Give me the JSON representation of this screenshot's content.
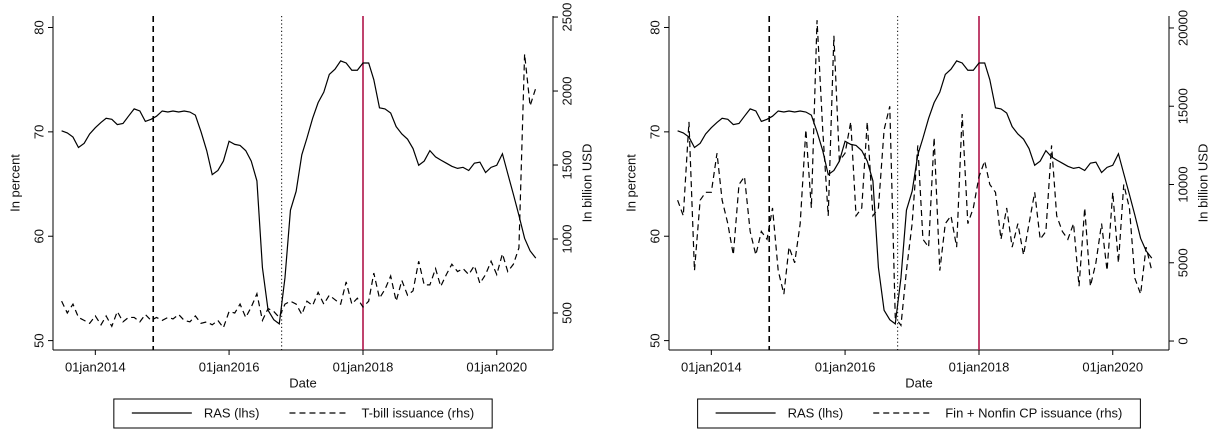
{
  "chart_data": [
    {
      "type": "line",
      "xlabel": "Date",
      "ylabel": "In percent",
      "y2label": "In billion USD",
      "x": [
        "2013-07",
        "2013-08",
        "2013-09",
        "2013-10",
        "2013-11",
        "2013-12",
        "2014-01",
        "2014-02",
        "2014-03",
        "2014-04",
        "2014-05",
        "2014-06",
        "2014-07",
        "2014-08",
        "2014-09",
        "2014-10",
        "2014-11",
        "2014-12",
        "2015-01",
        "2015-02",
        "2015-03",
        "2015-04",
        "2015-05",
        "2015-06",
        "2015-07",
        "2015-08",
        "2015-09",
        "2015-10",
        "2015-11",
        "2015-12",
        "2016-01",
        "2016-02",
        "2016-03",
        "2016-04",
        "2016-05",
        "2016-06",
        "2016-07",
        "2016-08",
        "2016-09",
        "2016-10",
        "2016-11",
        "2016-12",
        "2017-01",
        "2017-02",
        "2017-03",
        "2017-04",
        "2017-05",
        "2017-06",
        "2017-07",
        "2017-08",
        "2017-09",
        "2017-10",
        "2017-11",
        "2017-12",
        "2018-01",
        "2018-02",
        "2018-03",
        "2018-04",
        "2018-05",
        "2018-06",
        "2018-07",
        "2018-08",
        "2018-09",
        "2018-10",
        "2018-11",
        "2018-12",
        "2019-01",
        "2019-02",
        "2019-03",
        "2019-04",
        "2019-05",
        "2019-06",
        "2019-07",
        "2019-08",
        "2019-09",
        "2019-10",
        "2019-11",
        "2019-12",
        "2020-01",
        "2020-02",
        "2020-03",
        "2020-04",
        "2020-05",
        "2020-06",
        "2020-07",
        "2020-08"
      ],
      "xlim": [
        "2013-05-15",
        "2020-11-03"
      ],
      "xticks": [
        {
          "value": "2014-01",
          "label": "01jan2014"
        },
        {
          "value": "2016-01",
          "label": "01jan2016"
        },
        {
          "value": "2018-01",
          "label": "01jan2018"
        },
        {
          "value": "2020-01",
          "label": "01jan2020"
        }
      ],
      "ylim": [
        49.1,
        81.1
      ],
      "yticks": [
        50,
        60,
        70,
        80
      ],
      "y2lim": [
        250,
        2507
      ],
      "y2ticks": [
        500,
        1000,
        1500,
        2000,
        2500
      ],
      "vlines": [
        {
          "x": "2014-11-13",
          "style": "dashed",
          "color": "#000000"
        },
        {
          "x": "2016-10-14",
          "style": "dotted",
          "color": "#000000"
        },
        {
          "x": "2018-01",
          "style": "solid",
          "color": "#b0154a"
        }
      ],
      "series": [
        {
          "name": "RAS (lhs)",
          "color": "#000000",
          "style": "solid",
          "values": [
            70.1,
            69.9,
            69.5,
            68.5,
            68.9,
            69.8,
            70.4,
            70.9,
            71.3,
            71.2,
            70.7,
            70.8,
            71.5,
            72.2,
            72.0,
            71.0,
            71.2,
            71.5,
            72.0,
            71.9,
            72.0,
            71.9,
            72.0,
            71.9,
            71.6,
            70.0,
            68.2,
            65.9,
            66.3,
            67.2,
            69.1,
            68.8,
            68.7,
            68.2,
            67.2,
            65.3,
            57.0,
            52.9,
            52.0,
            51.6,
            56.0,
            62.5,
            64.3,
            67.8,
            69.4,
            71.3,
            72.8,
            73.8,
            75.5,
            76.0,
            76.8,
            76.6,
            75.9,
            75.9,
            76.6,
            76.6,
            75.0,
            72.3,
            72.2,
            71.8,
            70.5,
            69.8,
            69.3,
            68.4,
            66.8,
            67.2,
            68.2,
            67.6,
            67.3,
            67.0,
            66.7,
            66.5,
            66.6,
            66.3,
            67.0,
            67.1,
            66.1,
            66.6,
            66.8,
            67.9,
            66.0,
            64.0,
            62.0,
            59.8,
            58.6,
            57.9
          ]
        },
        {
          "name": "T-bill issuance (rhs)",
          "color": "#000000",
          "style": "dashed",
          "axis": "y2",
          "values": [
            580,
            500,
            560,
            470,
            450,
            430,
            480,
            420,
            480,
            410,
            510,
            440,
            470,
            470,
            440,
            490,
            450,
            470,
            450,
            470,
            460,
            490,
            450,
            440,
            480,
            430,
            440,
            420,
            450,
            400,
            510,
            500,
            560,
            470,
            540,
            630,
            450,
            530,
            510,
            470,
            560,
            580,
            560,
            490,
            580,
            550,
            640,
            560,
            620,
            590,
            560,
            710,
            560,
            600,
            540,
            580,
            770,
            600,
            660,
            750,
            580,
            720,
            620,
            650,
            850,
            690,
            690,
            800,
            680,
            760,
            830,
            780,
            800,
            760,
            820,
            700,
            760,
            850,
            760,
            900,
            780,
            830,
            940,
            2250,
            1900,
            2020
          ]
        }
      ]
    },
    {
      "type": "line",
      "xlabel": "Date",
      "ylabel": "In percent",
      "y2label": "In billion USD",
      "x": [
        "2013-07",
        "2013-08",
        "2013-09",
        "2013-10",
        "2013-11",
        "2013-12",
        "2014-01",
        "2014-02",
        "2014-03",
        "2014-04",
        "2014-05",
        "2014-06",
        "2014-07",
        "2014-08",
        "2014-09",
        "2014-10",
        "2014-11",
        "2014-12",
        "2015-01",
        "2015-02",
        "2015-03",
        "2015-04",
        "2015-05",
        "2015-06",
        "2015-07",
        "2015-08",
        "2015-09",
        "2015-10",
        "2015-11",
        "2015-12",
        "2016-01",
        "2016-02",
        "2016-03",
        "2016-04",
        "2016-05",
        "2016-06",
        "2016-07",
        "2016-08",
        "2016-09",
        "2016-10",
        "2016-11",
        "2016-12",
        "2017-01",
        "2017-02",
        "2017-03",
        "2017-04",
        "2017-05",
        "2017-06",
        "2017-07",
        "2017-08",
        "2017-09",
        "2017-10",
        "2017-11",
        "2017-12",
        "2018-01",
        "2018-02",
        "2018-03",
        "2018-04",
        "2018-05",
        "2018-06",
        "2018-07",
        "2018-08",
        "2018-09",
        "2018-10",
        "2018-11",
        "2018-12",
        "2019-01",
        "2019-02",
        "2019-03",
        "2019-04",
        "2019-05",
        "2019-06",
        "2019-07",
        "2019-08",
        "2019-09",
        "2019-10",
        "2019-11",
        "2019-12",
        "2020-01",
        "2020-02",
        "2020-03",
        "2020-04",
        "2020-05",
        "2020-06",
        "2020-07",
        "2020-08"
      ],
      "xlim": [
        "2013-05-15",
        "2020-11-03"
      ],
      "xticks": [
        {
          "value": "2014-01",
          "label": "01jan2014"
        },
        {
          "value": "2016-01",
          "label": "01jan2016"
        },
        {
          "value": "2018-01",
          "label": "01jan2018"
        },
        {
          "value": "2020-01",
          "label": "01jan2020"
        }
      ],
      "ylim": [
        49.1,
        81.1
      ],
      "yticks": [
        50,
        60,
        70,
        80
      ],
      "y2lim": [
        -573,
        20764
      ],
      "y2ticks": [
        0,
        5000,
        10000,
        15000,
        20000
      ],
      "vlines": [
        {
          "x": "2014-11-13",
          "style": "dashed",
          "color": "#000000"
        },
        {
          "x": "2016-10-14",
          "style": "dotted",
          "color": "#000000"
        },
        {
          "x": "2018-01",
          "style": "solid",
          "color": "#b0154a"
        }
      ],
      "series": [
        {
          "name": "RAS (lhs)",
          "color": "#000000",
          "style": "solid",
          "values": [
            70.1,
            69.9,
            69.5,
            68.5,
            68.9,
            69.8,
            70.4,
            70.9,
            71.3,
            71.2,
            70.7,
            70.8,
            71.5,
            72.2,
            72.0,
            71.0,
            71.2,
            71.5,
            72.0,
            71.9,
            72.0,
            71.9,
            72.0,
            71.9,
            71.6,
            70.0,
            68.2,
            65.9,
            66.3,
            67.2,
            69.1,
            68.8,
            68.7,
            68.2,
            67.2,
            65.3,
            57.0,
            52.9,
            52.0,
            51.6,
            56.0,
            62.5,
            64.3,
            67.8,
            69.4,
            71.3,
            72.8,
            73.8,
            75.5,
            76.0,
            76.8,
            76.6,
            75.9,
            75.9,
            76.6,
            76.6,
            75.0,
            72.3,
            72.2,
            71.8,
            70.5,
            69.8,
            69.3,
            68.4,
            66.8,
            67.2,
            68.2,
            67.6,
            67.3,
            67.0,
            66.7,
            66.5,
            66.6,
            66.3,
            67.0,
            67.1,
            66.1,
            66.6,
            66.8,
            67.9,
            66.0,
            64.0,
            62.0,
            59.8,
            58.6,
            57.9
          ]
        },
        {
          "name": "Fin + Nonfin CP issuance (rhs)",
          "color": "#000000",
          "style": "dashed",
          "axis": "y2",
          "values": [
            9000,
            8000,
            14000,
            4500,
            9000,
            9500,
            9500,
            12000,
            9000,
            7500,
            5500,
            10000,
            10500,
            7000,
            5500,
            7000,
            6500,
            8500,
            4500,
            3000,
            6000,
            5000,
            7500,
            13500,
            8500,
            20500,
            13500,
            8000,
            19500,
            11500,
            12000,
            14000,
            8000,
            8500,
            14000,
            8000,
            8500,
            13500,
            15000,
            1500,
            1000,
            4500,
            7500,
            12500,
            6500,
            6000,
            13000,
            4500,
            7500,
            8000,
            6000,
            14500,
            7500,
            8500,
            10500,
            11500,
            10000,
            9500,
            6500,
            8500,
            6000,
            7500,
            5500,
            7500,
            9500,
            6500,
            7000,
            12500,
            8000,
            7000,
            6500,
            7500,
            3500,
            8500,
            3500,
            5000,
            7500,
            4500,
            9500,
            5000,
            10000,
            8500,
            4000,
            3000,
            6000,
            4500
          ]
        }
      ]
    }
  ]
}
